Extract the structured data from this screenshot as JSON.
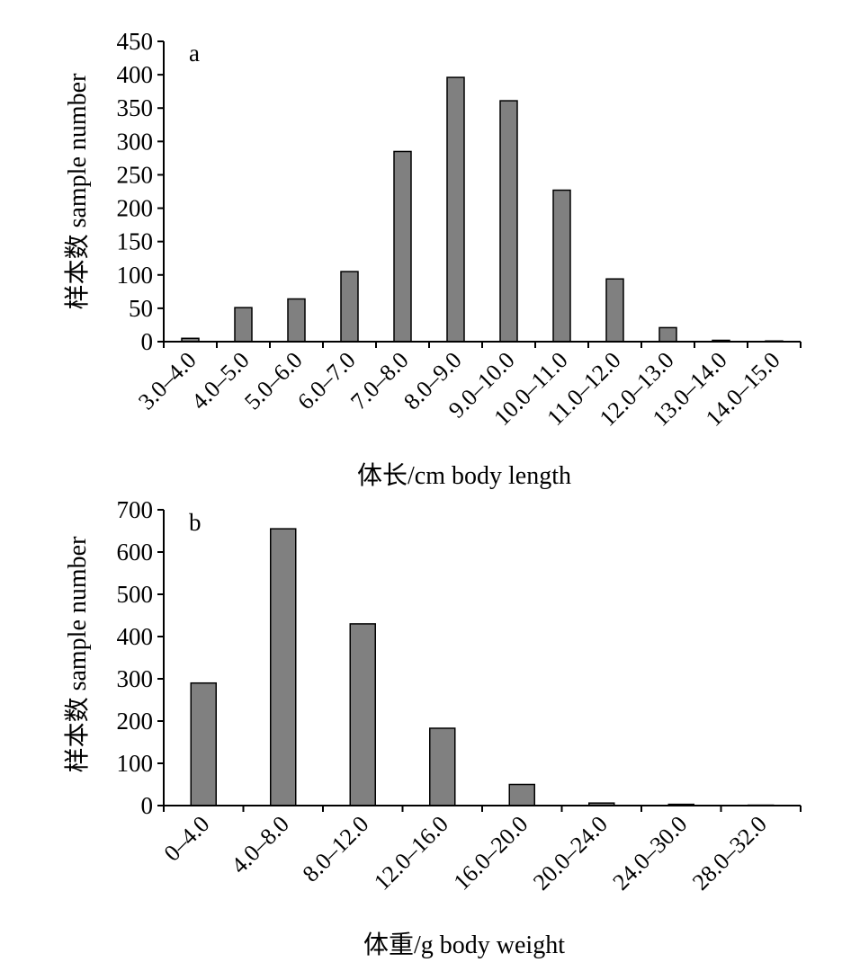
{
  "colors": {
    "bar_fill": "#808080",
    "bar_stroke": "#000000",
    "axis": "#000000"
  },
  "chart_data": [
    {
      "type": "bar",
      "panel_label": "a",
      "title": "",
      "xlabel": "体长/cm body length",
      "ylabel": "样本数 sample number",
      "ylim": [
        0,
        450
      ],
      "yticks": [
        0,
        50,
        100,
        150,
        200,
        250,
        300,
        350,
        400,
        450
      ],
      "grid": false,
      "categories": [
        "3.0–4.0",
        "4.0–5.0",
        "5.0–6.0",
        "6.0–7.0",
        "7.0–8.0",
        "8.0–9.0",
        "9.0–10.0",
        "10.0–11.0",
        "11.0–12.0",
        "12.0–13.0",
        "13.0–14.0",
        "14.0–15.0"
      ],
      "values": [
        5,
        51,
        64,
        105,
        285,
        396,
        361,
        227,
        94,
        21,
        2,
        1
      ]
    },
    {
      "type": "bar",
      "panel_label": "b",
      "title": "",
      "xlabel": "体重/g body weight",
      "ylabel": "样本数 sample number",
      "ylim": [
        0,
        700
      ],
      "yticks": [
        0,
        100,
        200,
        300,
        400,
        500,
        600,
        700
      ],
      "grid": false,
      "categories": [
        "0–4.0",
        "4.0–8.0",
        "8.0–12.0",
        "12.0–16.0",
        "16.0–20.0",
        "20.0–24.0",
        "24.0–30.0",
        "28.0–32.0"
      ],
      "values": [
        290,
        655,
        430,
        183,
        50,
        6,
        3,
        1
      ]
    }
  ]
}
